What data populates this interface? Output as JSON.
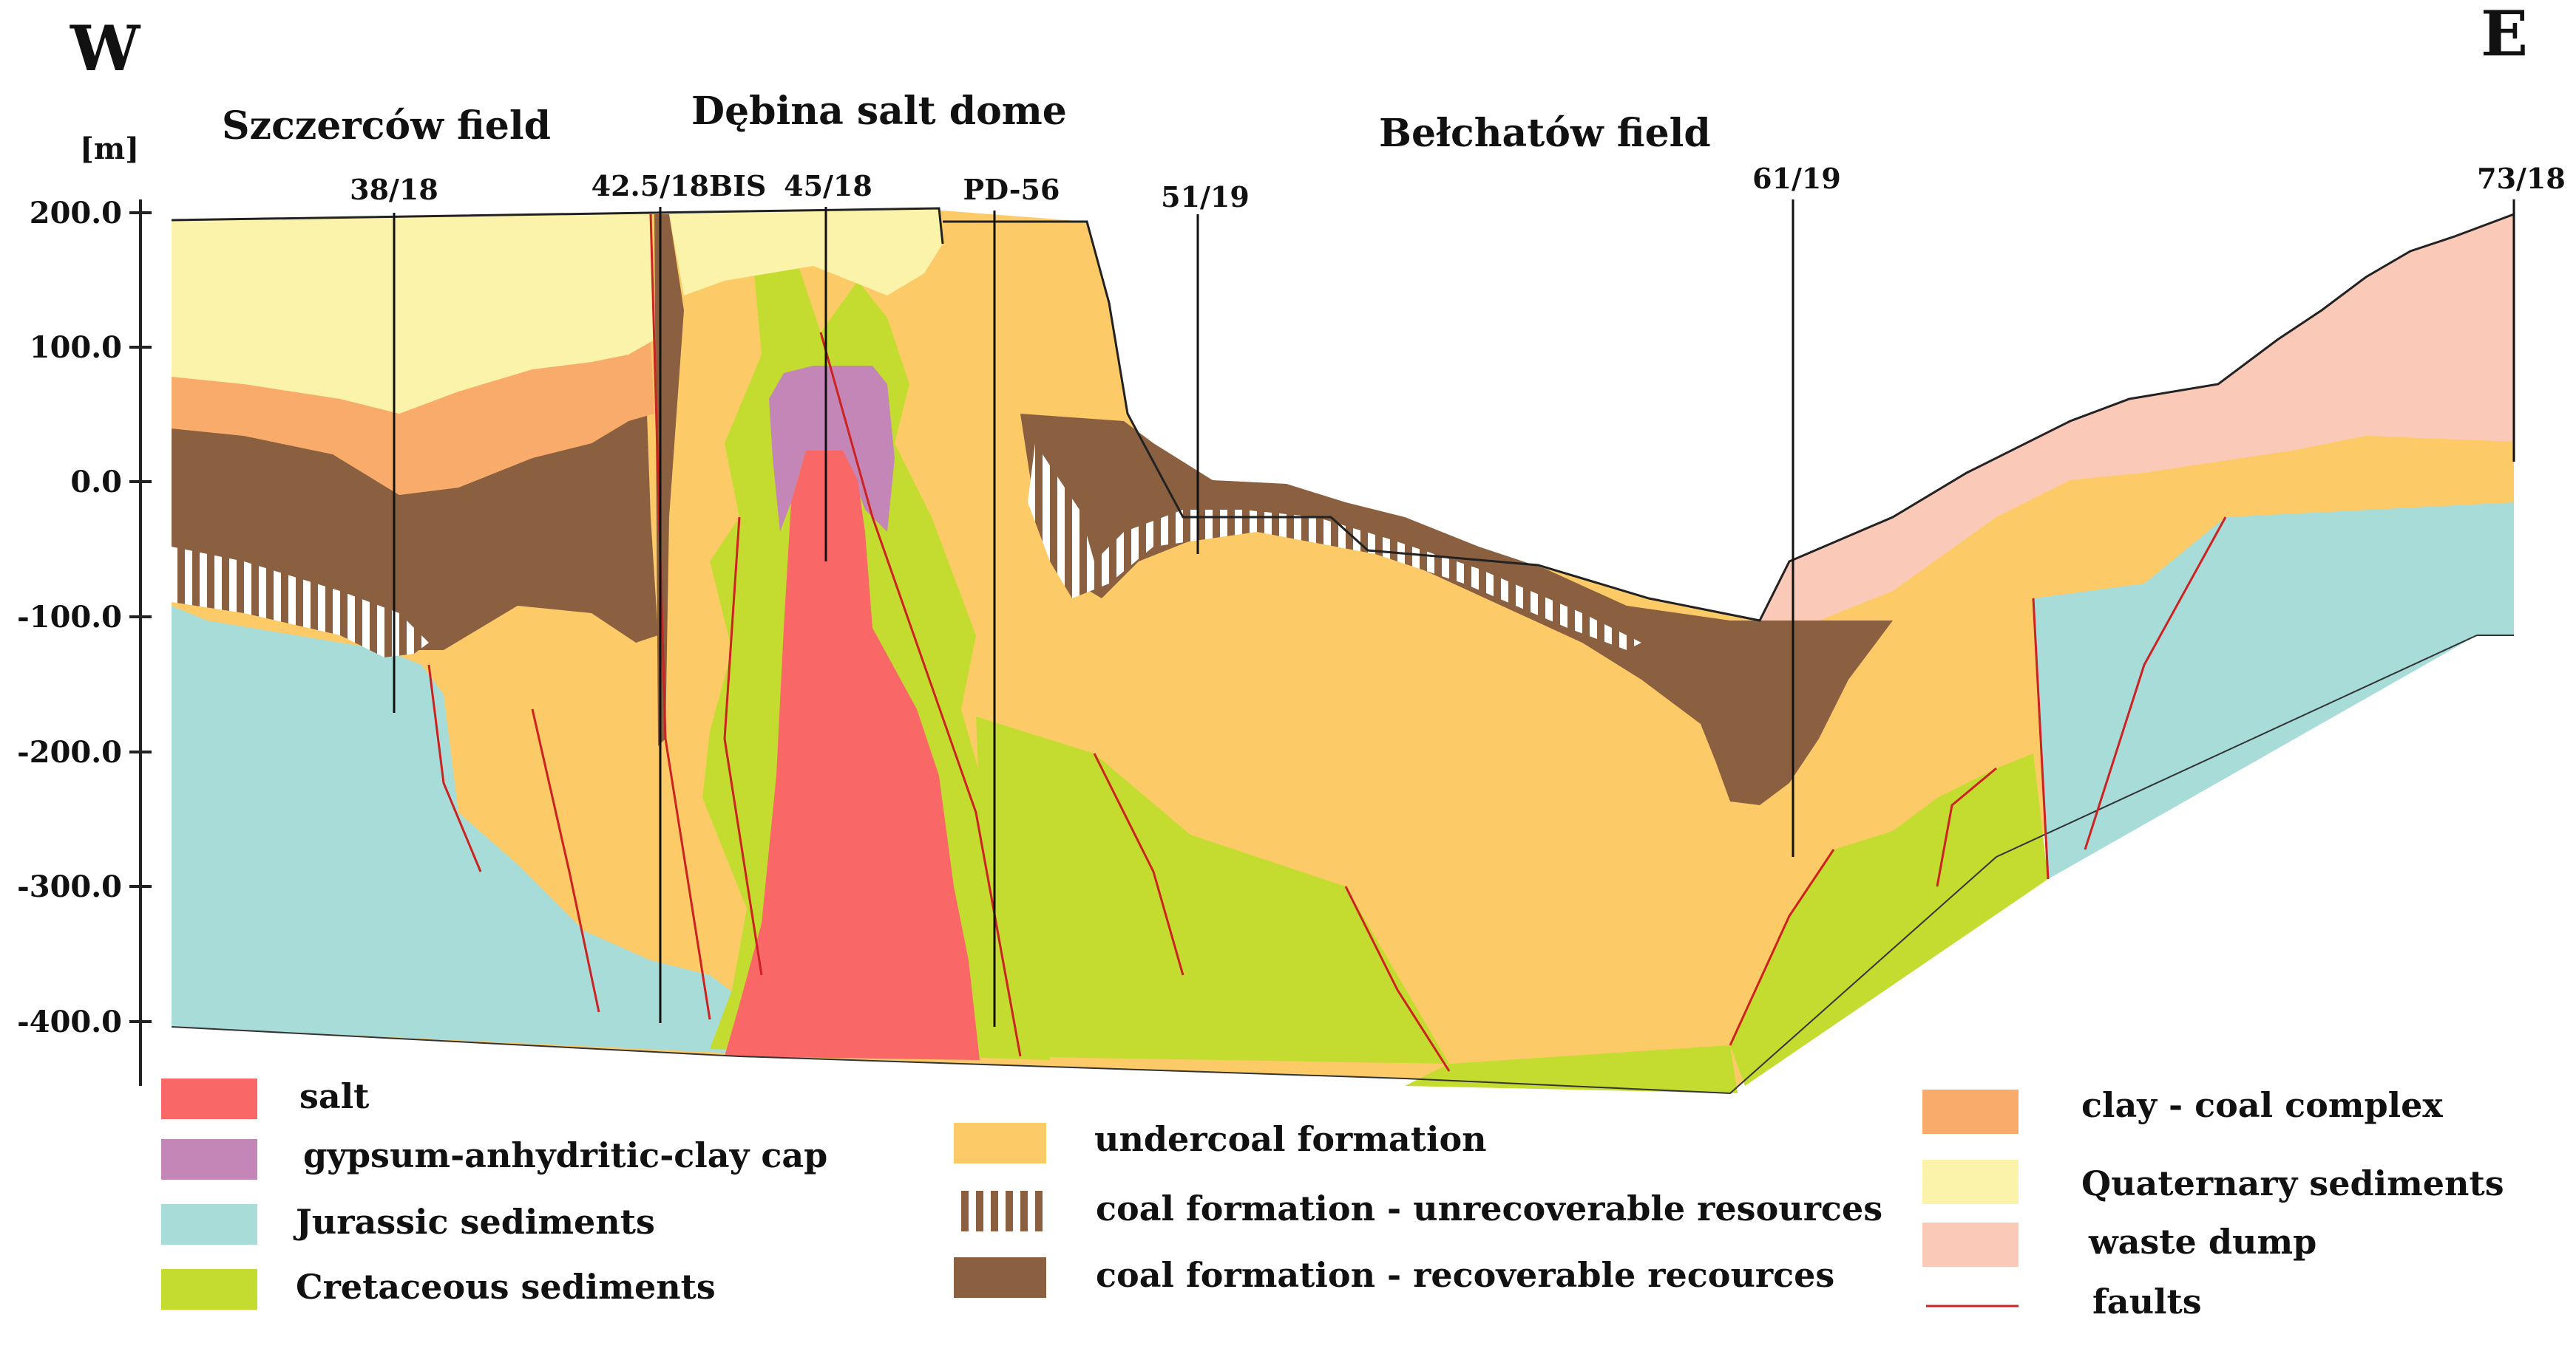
{
  "directions": {
    "west": "W",
    "east": "E"
  },
  "fields": {
    "szczercow": "Szczerców field",
    "debina": "Dębina salt dome",
    "belchatow": "Bełchatów field"
  },
  "axis": {
    "unit": "[m]",
    "ticks": [
      "200.0",
      "100.0",
      "0.0",
      "-100.0",
      "-200.0",
      "-300.0",
      "-400.0"
    ]
  },
  "boreholes": [
    "38/18",
    "42.5/18BIS",
    "45/18",
    "PD-56",
    "51/19",
    "61/19",
    "73/18"
  ],
  "legend": {
    "salt": "salt",
    "cap": "gypsum-anhydritic-clay cap",
    "jurassic": "Jurassic sediments",
    "cretaceous": "Cretaceous sediments",
    "undercoal": "undercoal formation",
    "coal_unrec": "coal formation - unrecoverable resources",
    "coal_rec": "coal formation - recoverable recources",
    "claycoal": "clay - coal complex",
    "quaternary": "Quaternary sediments",
    "waste": "waste dump",
    "faults": "faults"
  },
  "colors": {
    "salt": "#f96767",
    "cap": "#c486b6",
    "jurassic": "#a8dcd9",
    "cretaceous": "#c4dc30",
    "undercoal": "#fccb67",
    "coal": "#8a6040",
    "claycoal": "#f9ab6b",
    "quaternary": "#fbf3a9",
    "waste": "#fac9b8",
    "fault": "#cc2222"
  }
}
